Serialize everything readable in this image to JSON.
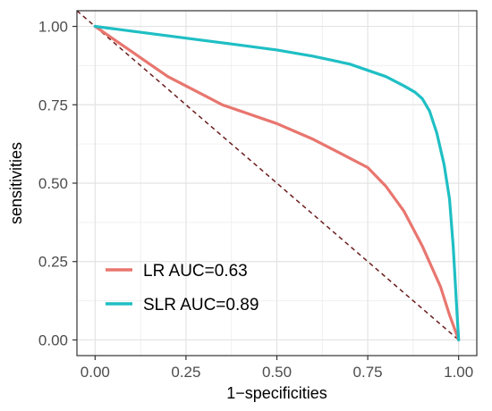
{
  "chart_data": {
    "type": "line",
    "title": "",
    "xlabel": "1−specificities",
    "ylabel": "sensitivities",
    "xlim": [
      -0.05,
      1.05
    ],
    "ylim": [
      -0.05,
      1.05
    ],
    "x_ticks": [
      0.0,
      0.25,
      0.5,
      0.75,
      1.0
    ],
    "x_tick_labels": [
      "0.00",
      "0.25",
      "0.50",
      "0.75",
      "1.00"
    ],
    "y_ticks": [
      0.0,
      0.25,
      0.5,
      0.75,
      1.0
    ],
    "y_tick_labels": [
      "0.00",
      "0.25",
      "0.50",
      "0.75",
      "1.00"
    ],
    "grid": true,
    "legend_position": "bottom-left",
    "reference_line": {
      "from": [
        -0.05,
        1.05
      ],
      "to": [
        1.0,
        0.0
      ],
      "color": "#6b1c1c",
      "style": "dashed"
    },
    "series": [
      {
        "name": "LR AUC=0.63",
        "color": "#E8766F",
        "x": [
          0.0,
          0.05,
          0.1,
          0.15,
          0.2,
          0.25,
          0.3,
          0.35,
          0.4,
          0.45,
          0.5,
          0.55,
          0.6,
          0.65,
          0.7,
          0.75,
          0.8,
          0.85,
          0.9,
          0.95,
          0.975,
          1.0
        ],
        "y": [
          1.0,
          0.96,
          0.92,
          0.88,
          0.84,
          0.81,
          0.78,
          0.75,
          0.73,
          0.71,
          0.69,
          0.665,
          0.64,
          0.61,
          0.58,
          0.55,
          0.49,
          0.41,
          0.3,
          0.17,
          0.08,
          0.0
        ]
      },
      {
        "name": "SLR AUC=0.89",
        "color": "#1FBFC4",
        "x": [
          0.0,
          0.1,
          0.2,
          0.3,
          0.4,
          0.5,
          0.6,
          0.7,
          0.75,
          0.8,
          0.85,
          0.88,
          0.9,
          0.92,
          0.94,
          0.96,
          0.975,
          0.985,
          0.995,
          1.0
        ],
        "y": [
          1.0,
          0.985,
          0.97,
          0.955,
          0.94,
          0.925,
          0.905,
          0.88,
          0.86,
          0.84,
          0.81,
          0.79,
          0.77,
          0.73,
          0.66,
          0.56,
          0.45,
          0.3,
          0.1,
          0.0
        ]
      }
    ]
  }
}
